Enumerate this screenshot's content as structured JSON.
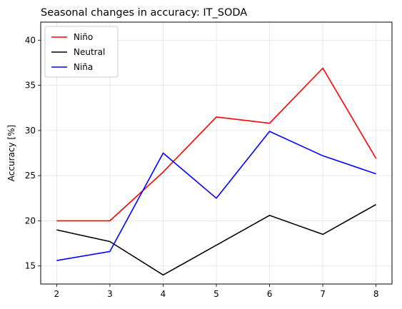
{
  "chart_data": {
    "type": "line",
    "title": "Seasonal changes in accuracy: IT_SODA",
    "xlabel": "",
    "ylabel": "Accuracy [%]",
    "x": [
      2,
      3,
      4,
      5,
      6,
      7,
      8
    ],
    "xlim": [
      1.7,
      8.3
    ],
    "ylim": [
      13,
      42
    ],
    "xticks": [
      2,
      3,
      4,
      5,
      6,
      7,
      8
    ],
    "yticks": [
      15,
      20,
      25,
      30,
      35,
      40
    ],
    "grid": true,
    "legend_position": "top-left",
    "series": [
      {
        "name": "Niño",
        "color": "#ff0000",
        "values": [
          20.0,
          20.0,
          25.4,
          31.5,
          30.8,
          36.9,
          26.9
        ]
      },
      {
        "name": "Neutral",
        "color": "#000000",
        "values": [
          19.0,
          17.7,
          14.0,
          17.3,
          20.6,
          18.5,
          21.8
        ]
      },
      {
        "name": "Niña",
        "color": "#0000ff",
        "values": [
          15.6,
          16.6,
          27.5,
          22.5,
          29.9,
          27.2,
          25.2
        ]
      }
    ]
  }
}
